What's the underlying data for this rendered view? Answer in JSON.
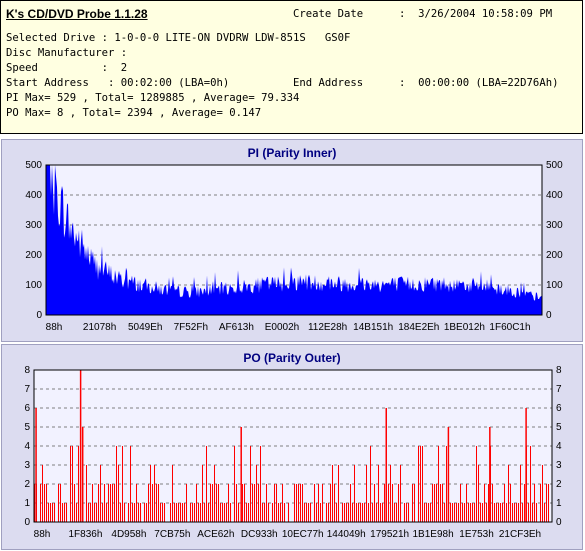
{
  "header": {
    "app_title": "K's CD/DVD Probe 1.1.28",
    "create_date_label": "Create Date",
    "create_date_value": ":  3/26/2004 10:58:09 PM",
    "selected_drive": "Selected Drive : 1-0-0-0 LITE-ON DVDRW LDW-851S   GS0F",
    "disc_manufacturer": "Disc Manufacturer :",
    "speed": "Speed          :  2",
    "start_address": "Start Address   : 00:02:00 (LBA=0h)",
    "end_address_label": "End Address",
    "end_address_value": ":  00:00:00 (LBA=22D76Ah)",
    "pi_stats": "PI Max= 529 , Total= 1289885 , Average= 79.334",
    "po_stats": "PO Max= 8 , Total= 2394 , Average= 0.147"
  },
  "colors": {
    "pi_fill": "#0000ff",
    "po_bar": "#ff0000",
    "plot_bg": "#f2f2ff",
    "panel_bg": "#dcdcf0",
    "title_color": "#000080"
  },
  "chart_data": [
    {
      "type": "area",
      "title": "PI (Parity Inner)",
      "ylim": [
        0,
        500
      ],
      "y_ticks": [
        "0",
        "100",
        "200",
        "300",
        "400",
        "500"
      ],
      "x_tick_labels": [
        "88h",
        "21078h",
        "5049Eh",
        "7F52Fh",
        "AF613h",
        "E0002h",
        "112E28h",
        "14B151h",
        "184E2Eh",
        "1BE012h",
        "1F60C1h"
      ],
      "grid": true,
      "x": [
        0,
        2,
        5,
        10,
        15,
        20,
        25,
        30,
        40,
        50,
        60,
        70,
        80,
        90,
        100
      ],
      "values": [
        520,
        400,
        280,
        160,
        115,
        95,
        78,
        75,
        92,
        108,
        102,
        100,
        102,
        92,
        55
      ]
    },
    {
      "type": "bar",
      "title": "PO (Parity Outer)",
      "ylim": [
        0,
        8
      ],
      "y_ticks": [
        "0",
        "1",
        "2",
        "3",
        "4",
        "5",
        "6",
        "7",
        "8"
      ],
      "x_tick_labels": [
        "88h",
        "1F836h",
        "4D958h",
        "7CB75h",
        "ACE62h",
        "DC933h",
        "10EC77h",
        "144049h",
        "179521h",
        "1B1E98h",
        "1E753h",
        "21CF3Eh"
      ],
      "grid": true,
      "peaks": [
        {
          "x": 0.4,
          "value": 6
        },
        {
          "x": 9,
          "value": 8
        },
        {
          "x": 9.4,
          "value": 5
        },
        {
          "x": 40,
          "value": 5
        },
        {
          "x": 68,
          "value": 6
        },
        {
          "x": 95,
          "value": 6
        },
        {
          "x": 80,
          "value": 5
        },
        {
          "x": 88,
          "value": 5
        }
      ]
    }
  ]
}
